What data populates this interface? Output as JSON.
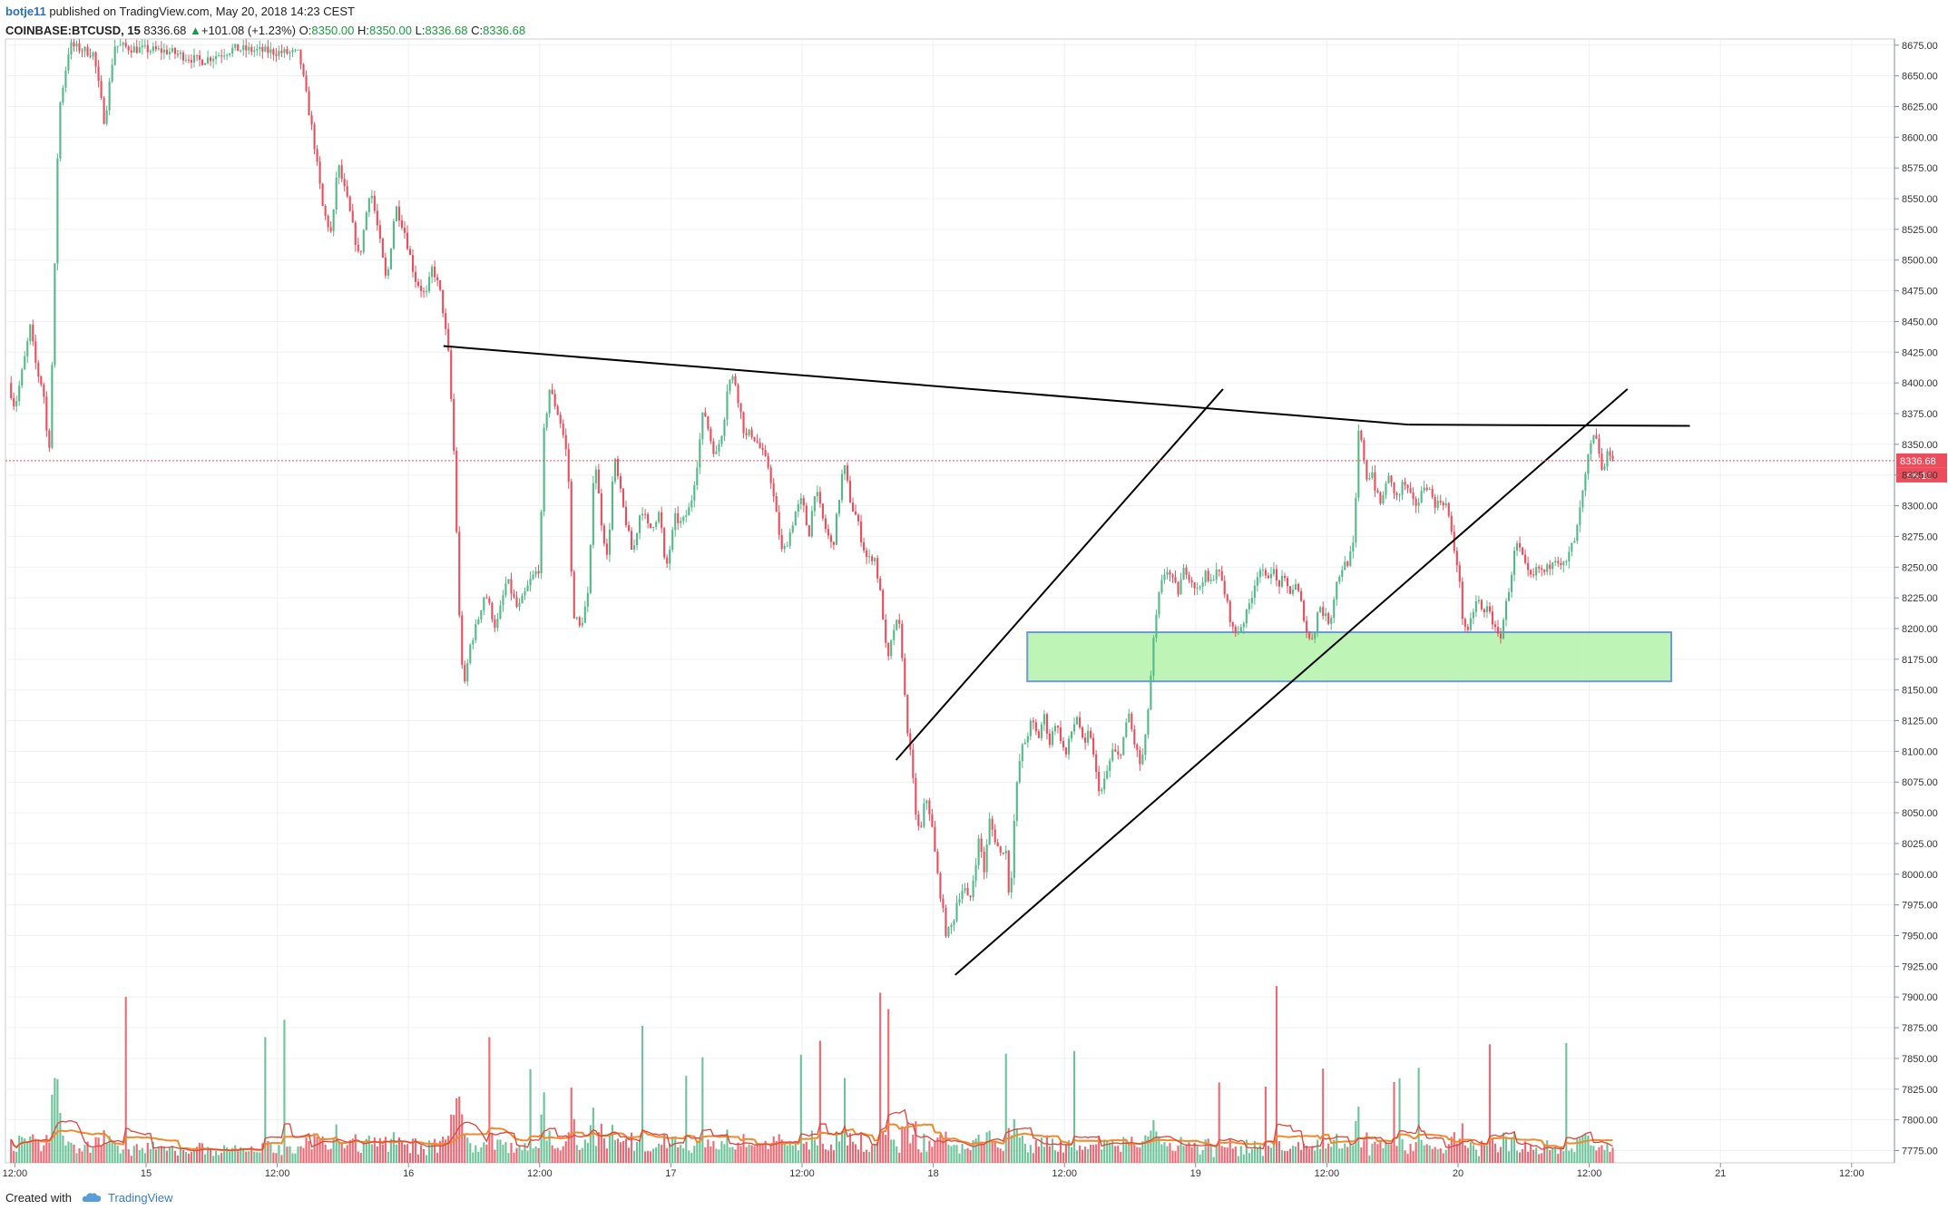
{
  "header": {
    "author": "botje11",
    "published": "published on TradingView.com, May 20, 2018 14:23 CEST",
    "symbol": "COINBASE:BTCUSD, 15",
    "last": "8336.68",
    "change": "+101.08 (+1.23%)",
    "o_label": "O:",
    "o_value": "8350.00",
    "h_label": "H:",
    "h_value": "8350.00",
    "l_label": "L:",
    "l_value": "8336.68",
    "c_label": "C:",
    "c_value": "8336.68"
  },
  "footer": {
    "created_with": "Created with",
    "brand": "TradingView"
  },
  "colors": {
    "up": "#53b987",
    "down": "#eb4d5c",
    "grid": "#eef1f4",
    "zone_fill": "#b8f5b0",
    "zone_stroke": "#5b8fd6",
    "ma1": "#f08a2c",
    "ma2": "#e0443c"
  },
  "chart_data": {
    "type": "candlestick",
    "ylim": [
      7765,
      8680
    ],
    "y_ticks": [
      7775,
      7800,
      7825,
      7850,
      7875,
      7900,
      7925,
      7950,
      7975,
      8000,
      8025,
      8050,
      8075,
      8100,
      8125,
      8150,
      8175,
      8200,
      8225,
      8250,
      8275,
      8300,
      8325,
      8350,
      8375,
      8400,
      8425,
      8450,
      8475,
      8500,
      8525,
      8550,
      8575,
      8600,
      8625,
      8650,
      8675
    ],
    "y_tick_labels": [
      "7775.00",
      "7800.00",
      "7825.00",
      "7850.00",
      "7875.00",
      "7900.00",
      "7925.00",
      "7950.00",
      "7975.00",
      "8000.00",
      "8025.00",
      "8050.00",
      "8075.00",
      "8100.00",
      "8125.00",
      "8150.00",
      "8175.00",
      "8200.00",
      "8225.00",
      "8250.00",
      "8275.00",
      "8300.00",
      "8325.00",
      "8350.00",
      "8375.00",
      "8400.00",
      "8425.00",
      "8450.00",
      "8475.00",
      "8500.00",
      "8525.00",
      "8550.00",
      "8575.00",
      "8600.00",
      "8625.00",
      "8650.00",
      "8675.00"
    ],
    "x_ticks_hours": [
      -12,
      0,
      12,
      24,
      36,
      48,
      60,
      72,
      84,
      96,
      108,
      120,
      132,
      144,
      156
    ],
    "x_tick_labels": [
      "12:00",
      "15",
      "12:00",
      "16",
      "12:00",
      "17",
      "12:00",
      "18",
      "12:00",
      "19",
      "12:00",
      "20",
      "12:00",
      "21",
      "12:00"
    ],
    "last_price": 8336.68,
    "last_price_label": "8336.68",
    "countdown_label": "08:10",
    "price_path": [
      [
        -12.6,
        8400
      ],
      [
        -12.0,
        8380
      ],
      [
        -11.2,
        8415
      ],
      [
        -10.6,
        8445
      ],
      [
        -10.0,
        8410
      ],
      [
        -9.4,
        8395
      ],
      [
        -8.9,
        8338
      ],
      [
        -8.5,
        8440
      ],
      [
        -8.0,
        8620
      ],
      [
        -7.0,
        8675
      ],
      [
        -4.8,
        8668
      ],
      [
        -3.8,
        8612
      ],
      [
        -2.9,
        8675
      ],
      [
        -1.0,
        8672
      ],
      [
        2.0,
        8670
      ],
      [
        5.0,
        8662
      ],
      [
        8.0,
        8672
      ],
      [
        11.0,
        8670
      ],
      [
        14.0,
        8668
      ],
      [
        15.3,
        8600
      ],
      [
        16.2,
        8540
      ],
      [
        17.0,
        8520
      ],
      [
        17.5,
        8580
      ],
      [
        18.5,
        8545
      ],
      [
        19.5,
        8500
      ],
      [
        20.5,
        8560
      ],
      [
        21.2,
        8525
      ],
      [
        22.0,
        8480
      ],
      [
        22.8,
        8545
      ],
      [
        23.6,
        8525
      ],
      [
        24.6,
        8485
      ],
      [
        25.6,
        8470
      ],
      [
        26.2,
        8495
      ],
      [
        27.0,
        8470
      ],
      [
        27.7,
        8420
      ],
      [
        28.2,
        8336
      ],
      [
        28.7,
        8195
      ],
      [
        29.1,
        8150
      ],
      [
        29.6,
        8185
      ],
      [
        30.3,
        8205
      ],
      [
        31.0,
        8230
      ],
      [
        32.0,
        8200
      ],
      [
        33.0,
        8240
      ],
      [
        34.0,
        8215
      ],
      [
        35.2,
        8240
      ],
      [
        36.0,
        8250
      ],
      [
        36.4,
        8360
      ],
      [
        36.9,
        8395
      ],
      [
        37.5,
        8380
      ],
      [
        38.0,
        8365
      ],
      [
        38.6,
        8335
      ],
      [
        39.0,
        8215
      ],
      [
        39.7,
        8200
      ],
      [
        40.5,
        8230
      ],
      [
        41.0,
        8345
      ],
      [
        41.6,
        8290
      ],
      [
        42.2,
        8255
      ],
      [
        42.8,
        8340
      ],
      [
        43.6,
        8300
      ],
      [
        44.5,
        8260
      ],
      [
        45.3,
        8300
      ],
      [
        46.0,
        8280
      ],
      [
        47.0,
        8295
      ],
      [
        47.5,
        8245
      ],
      [
        48.4,
        8290
      ],
      [
        49.0,
        8285
      ],
      [
        49.8,
        8300
      ],
      [
        50.4,
        8335
      ],
      [
        51.0,
        8380
      ],
      [
        51.6,
        8355
      ],
      [
        52.1,
        8340
      ],
      [
        52.8,
        8365
      ],
      [
        53.2,
        8400
      ],
      [
        53.8,
        8405
      ],
      [
        54.3,
        8380
      ],
      [
        54.8,
        8355
      ],
      [
        55.3,
        8360
      ],
      [
        56.0,
        8350
      ],
      [
        56.6,
        8338
      ],
      [
        57.0,
        8330
      ],
      [
        57.6,
        8295
      ],
      [
        58.2,
        8260
      ],
      [
        58.8,
        8275
      ],
      [
        59.4,
        8295
      ],
      [
        60.0,
        8305
      ],
      [
        60.6,
        8275
      ],
      [
        61.2,
        8315
      ],
      [
        62.0,
        8285
      ],
      [
        62.8,
        8265
      ],
      [
        63.3,
        8300
      ],
      [
        63.8,
        8335
      ],
      [
        64.5,
        8300
      ],
      [
        65.0,
        8290
      ],
      [
        65.5,
        8270
      ],
      [
        66.0,
        8255
      ],
      [
        66.6,
        8260
      ],
      [
        67.3,
        8220
      ],
      [
        67.8,
        8170
      ],
      [
        68.5,
        8205
      ],
      [
        69.0,
        8200
      ],
      [
        69.5,
        8130
      ],
      [
        70.0,
        8090
      ],
      [
        70.4,
        8050
      ],
      [
        70.8,
        8030
      ],
      [
        71.3,
        8065
      ],
      [
        71.8,
        8045
      ],
      [
        72.3,
        8005
      ],
      [
        72.8,
        7975
      ],
      [
        73.2,
        7950
      ],
      [
        73.8,
        7960
      ],
      [
        74.2,
        7980
      ],
      [
        74.8,
        7990
      ],
      [
        75.3,
        7975
      ],
      [
        75.8,
        8005
      ],
      [
        76.2,
        8030
      ],
      [
        76.7,
        8000
      ],
      [
        77.1,
        8045
      ],
      [
        77.6,
        8030
      ],
      [
        78.2,
        8015
      ],
      [
        78.6,
        8025
      ],
      [
        79.0,
        7975
      ],
      [
        79.5,
        8060
      ],
      [
        80.0,
        8100
      ],
      [
        80.5,
        8110
      ],
      [
        81.0,
        8125
      ],
      [
        81.6,
        8110
      ],
      [
        82.1,
        8130
      ],
      [
        82.7,
        8105
      ],
      [
        83.1,
        8125
      ],
      [
        83.7,
        8110
      ],
      [
        84.1,
        8095
      ],
      [
        84.6,
        8115
      ],
      [
        85.2,
        8130
      ],
      [
        85.8,
        8100
      ],
      [
        86.3,
        8120
      ],
      [
        86.8,
        8085
      ],
      [
        87.3,
        8065
      ],
      [
        87.8,
        8080
      ],
      [
        88.4,
        8100
      ],
      [
        89.0,
        8095
      ],
      [
        89.5,
        8115
      ],
      [
        89.9,
        8130
      ],
      [
        90.3,
        8110
      ],
      [
        90.9,
        8090
      ],
      [
        91.3,
        8100
      ],
      [
        91.8,
        8150
      ],
      [
        92.2,
        8195
      ],
      [
        92.7,
        8230
      ],
      [
        93.3,
        8250
      ],
      [
        93.8,
        8240
      ],
      [
        94.4,
        8230
      ],
      [
        95.0,
        8250
      ],
      [
        95.6,
        8240
      ],
      [
        96.2,
        8230
      ],
      [
        96.8,
        8245
      ],
      [
        97.3,
        8235
      ],
      [
        97.9,
        8250
      ],
      [
        98.5,
        8235
      ],
      [
        99.0,
        8215
      ],
      [
        99.5,
        8195
      ],
      [
        100.0,
        8200
      ],
      [
        100.6,
        8210
      ],
      [
        101.2,
        8230
      ],
      [
        101.8,
        8250
      ],
      [
        102.4,
        8240
      ],
      [
        103.0,
        8250
      ],
      [
        103.5,
        8235
      ],
      [
        104.0,
        8240
      ],
      [
        104.6,
        8230
      ],
      [
        105.2,
        8235
      ],
      [
        105.8,
        8215
      ],
      [
        106.3,
        8190
      ],
      [
        106.8,
        8195
      ],
      [
        107.3,
        8220
      ],
      [
        107.8,
        8210
      ],
      [
        108.3,
        8205
      ],
      [
        108.8,
        8235
      ],
      [
        109.4,
        8250
      ],
      [
        110.0,
        8255
      ],
      [
        110.5,
        8270
      ],
      [
        110.9,
        8360
      ],
      [
        111.3,
        8345
      ],
      [
        111.7,
        8320
      ],
      [
        112.1,
        8330
      ],
      [
        112.5,
        8310
      ],
      [
        113.0,
        8300
      ],
      [
        113.5,
        8325
      ],
      [
        114.0,
        8315
      ],
      [
        114.5,
        8305
      ],
      [
        115.0,
        8320
      ],
      [
        115.5,
        8310
      ],
      [
        116.0,
        8300
      ],
      [
        116.5,
        8305
      ],
      [
        117.0,
        8320
      ],
      [
        117.5,
        8310
      ],
      [
        118.0,
        8300
      ],
      [
        118.5,
        8305
      ],
      [
        119.0,
        8300
      ],
      [
        119.5,
        8270
      ],
      [
        120.0,
        8250
      ],
      [
        120.4,
        8210
      ],
      [
        120.9,
        8195
      ],
      [
        121.4,
        8215
      ],
      [
        121.8,
        8225
      ],
      [
        122.3,
        8210
      ],
      [
        122.8,
        8220
      ],
      [
        123.3,
        8200
      ],
      [
        123.8,
        8190
      ],
      [
        124.3,
        8215
      ],
      [
        124.8,
        8240
      ],
      [
        125.3,
        8270
      ],
      [
        125.8,
        8260
      ],
      [
        126.3,
        8245
      ],
      [
        126.8,
        8240
      ],
      [
        127.3,
        8250
      ],
      [
        127.8,
        8245
      ],
      [
        128.3,
        8250
      ],
      [
        128.8,
        8260
      ],
      [
        129.3,
        8255
      ],
      [
        129.8,
        8250
      ],
      [
        130.3,
        8265
      ],
      [
        130.8,
        8275
      ],
      [
        131.2,
        8300
      ],
      [
        131.6,
        8320
      ],
      [
        132.0,
        8345
      ],
      [
        132.4,
        8355
      ],
      [
        132.8,
        8350
      ],
      [
        133.2,
        8325
      ],
      [
        133.6,
        8340
      ],
      [
        134.0,
        8345
      ],
      [
        134.3,
        8337
      ]
    ],
    "annotations": {
      "resistance_line": [
        [
          27.2,
          8430
        ],
        [
          115.5,
          8366
        ]
      ],
      "channel_upper": [
        [
          68.6,
          8093
        ],
        [
          98.5,
          8395
        ]
      ],
      "channel_lower": [
        [
          74.0,
          7918
        ],
        [
          135.5,
          8395
        ]
      ],
      "channel_upper2": [
        [
          111.0,
          8410
        ],
        [
          133.0,
          8370
        ]
      ],
      "support_zone": {
        "x": [
          80.6,
          139.5
        ],
        "y": [
          8157,
          8197
        ]
      }
    }
  }
}
